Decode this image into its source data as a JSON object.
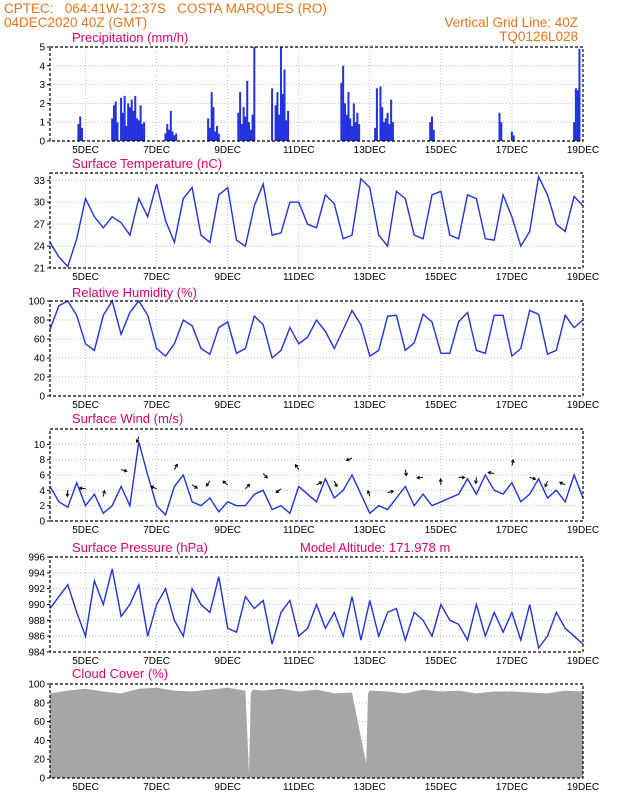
{
  "header": {
    "line1_left": "CPTEC:   064:41W-12:37S   COSTA MARQUES (RO)",
    "line2_left": "04DEC2020 40Z (GMT)",
    "line2_right": "Vertical Grid Line: 40Z",
    "line3_right": "TQ0126L028"
  },
  "colors": {
    "header": "#e8741c",
    "panel_title": "#e0006e",
    "series": "#2233dd",
    "cloud": "#a6a6a6"
  },
  "x_axis": {
    "labels": [
      "5DEC",
      "7DEC",
      "9DEC",
      "11DEC",
      "13DEC",
      "15DEC",
      "17DEC",
      "19DEC"
    ],
    "day_start": 4.0,
    "day_end": 19.0
  },
  "chart_data": [
    {
      "type": "bar",
      "title": "Precipitation (mm/h)",
      "ylim": [
        0,
        5
      ],
      "yticks": [
        0,
        1,
        2,
        3,
        4,
        5
      ],
      "x": [
        4.8,
        4.85,
        4.9,
        5.75,
        5.8,
        5.85,
        5.9,
        6.0,
        6.05,
        6.1,
        6.15,
        6.2,
        6.25,
        6.3,
        6.35,
        6.4,
        6.45,
        6.5,
        6.55,
        6.6,
        6.65,
        7.25,
        7.3,
        7.35,
        7.4,
        7.45,
        7.5,
        7.55,
        8.45,
        8.5,
        8.55,
        8.6,
        8.65,
        8.7,
        8.75,
        9.3,
        9.35,
        9.4,
        9.45,
        9.5,
        9.55,
        9.6,
        9.65,
        9.7,
        9.75,
        10.25,
        10.35,
        10.4,
        10.45,
        10.5,
        10.55,
        10.6,
        10.65,
        10.7,
        12.2,
        12.25,
        12.3,
        12.35,
        12.4,
        12.45,
        12.5,
        12.55,
        12.6,
        12.65,
        12.7,
        13.15,
        13.2,
        13.3,
        13.35,
        13.4,
        13.45,
        13.5,
        13.55,
        13.6,
        13.65,
        14.7,
        14.75,
        14.8,
        16.65,
        16.7,
        17.0,
        17.05,
        18.75,
        18.8,
        18.85,
        18.9
      ],
      "values": [
        0.9,
        1.3,
        0.7,
        1.2,
        1.9,
        2.1,
        1.0,
        2.3,
        1.5,
        2.4,
        0.8,
        2.0,
        1.8,
        2.2,
        1.6,
        2.4,
        1.2,
        1.1,
        1.9,
        0.9,
        1.0,
        0.4,
        0.9,
        0.6,
        1.6,
        0.5,
        0.3,
        0.4,
        1.2,
        0.7,
        2.6,
        1.8,
        0.5,
        0.8,
        0.4,
        1.5,
        2.6,
        0.9,
        1.8,
        1.3,
        3.2,
        1.0,
        0.6,
        1.4,
        5.0,
        2.8,
        1.9,
        2.6,
        1.4,
        5.0,
        2.5,
        3.8,
        1.1,
        1.6,
        3.1,
        4.0,
        2.0,
        1.4,
        2.6,
        1.2,
        0.8,
        2.0,
        1.0,
        1.5,
        0.9,
        0.7,
        2.8,
        2.9,
        1.8,
        1.0,
        1.2,
        1.5,
        0.9,
        2.2,
        1.0,
        1.0,
        1.3,
        0.6,
        1.5,
        1.0,
        0.5,
        0.3,
        1.0,
        2.8,
        2.7,
        4.9
      ]
    },
    {
      "type": "line",
      "title": "Surface Temperature (nC)",
      "ylim": [
        21,
        34
      ],
      "yticks": [
        21,
        24,
        27,
        30,
        33
      ],
      "x": [
        4.0,
        4.25,
        4.5,
        4.75,
        5.0,
        5.25,
        5.5,
        5.75,
        6.0,
        6.25,
        6.5,
        6.75,
        7.0,
        7.25,
        7.5,
        7.75,
        8.0,
        8.25,
        8.5,
        8.75,
        9.0,
        9.25,
        9.5,
        9.75,
        10.0,
        10.25,
        10.5,
        10.75,
        11.0,
        11.25,
        11.5,
        11.75,
        12.0,
        12.25,
        12.5,
        12.75,
        13.0,
        13.25,
        13.5,
        13.75,
        14.0,
        14.25,
        14.5,
        14.75,
        15.0,
        15.25,
        15.5,
        15.75,
        16.0,
        16.25,
        16.5,
        16.75,
        17.0,
        17.25,
        17.5,
        17.75,
        18.0,
        18.25,
        18.5,
        18.75,
        19.0
      ],
      "values": [
        24.5,
        22.5,
        21.2,
        25.0,
        30.5,
        28.0,
        26.5,
        28.0,
        27.2,
        25.5,
        30.5,
        28.0,
        32.5,
        27.5,
        24.5,
        30.5,
        32.0,
        25.5,
        24.5,
        31.0,
        32.0,
        24.8,
        24.0,
        29.5,
        32.5,
        25.5,
        25.8,
        30.0,
        30.0,
        27.0,
        26.5,
        31.0,
        29.8,
        25.0,
        25.5,
        33.2,
        32.0,
        25.5,
        24.0,
        31.5,
        30.5,
        25.5,
        25.0,
        31.0,
        31.5,
        25.5,
        25.0,
        31.0,
        30.5,
        25.0,
        24.8,
        31.0,
        28.0,
        24.0,
        26.0,
        33.5,
        31.0,
        27.0,
        26.0,
        30.8,
        29.5
      ]
    },
    {
      "type": "line",
      "title": "Relative Humidity (%)",
      "ylim": [
        0,
        100
      ],
      "yticks": [
        0,
        20,
        40,
        60,
        80,
        100
      ],
      "x": [
        4.0,
        4.25,
        4.5,
        4.75,
        5.0,
        5.25,
        5.5,
        5.75,
        6.0,
        6.25,
        6.5,
        6.75,
        7.0,
        7.25,
        7.5,
        7.75,
        8.0,
        8.25,
        8.5,
        8.75,
        9.0,
        9.25,
        9.5,
        9.75,
        10.0,
        10.25,
        10.5,
        10.75,
        11.0,
        11.25,
        11.5,
        11.75,
        12.0,
        12.25,
        12.5,
        12.75,
        13.0,
        13.25,
        13.5,
        13.75,
        14.0,
        14.25,
        14.5,
        14.75,
        15.0,
        15.25,
        15.5,
        15.75,
        16.0,
        16.25,
        16.5,
        16.75,
        17.0,
        17.25,
        17.5,
        17.75,
        18.0,
        18.25,
        18.5,
        18.75,
        19.0
      ],
      "values": [
        70,
        95,
        100,
        85,
        55,
        48,
        85,
        100,
        65,
        88,
        100,
        85,
        50,
        42,
        55,
        80,
        74,
        50,
        44,
        72,
        78,
        45,
        50,
        84,
        75,
        40,
        48,
        72,
        55,
        62,
        80,
        68,
        50,
        70,
        90,
        75,
        42,
        48,
        84,
        85,
        48,
        56,
        86,
        78,
        45,
        45,
        78,
        88,
        48,
        45,
        85,
        85,
        42,
        50,
        90,
        86,
        44,
        48,
        85,
        72,
        80
      ]
    },
    {
      "type": "line",
      "title": "Surface Wind (m/s)",
      "ylim": [
        0,
        12
      ],
      "yticks": [
        0,
        2,
        4,
        6,
        8,
        10
      ],
      "x": [
        4.0,
        4.25,
        4.5,
        4.75,
        5.0,
        5.25,
        5.5,
        5.75,
        6.0,
        6.25,
        6.5,
        6.75,
        7.0,
        7.25,
        7.5,
        7.75,
        8.0,
        8.25,
        8.5,
        8.75,
        9.0,
        9.25,
        9.5,
        9.75,
        10.0,
        10.25,
        10.5,
        10.75,
        11.0,
        11.25,
        11.5,
        11.75,
        12.0,
        12.25,
        12.5,
        12.75,
        13.0,
        13.25,
        13.5,
        13.75,
        14.0,
        14.25,
        14.5,
        14.75,
        15.0,
        15.25,
        15.5,
        15.75,
        16.0,
        16.25,
        16.5,
        16.75,
        17.0,
        17.25,
        17.5,
        17.75,
        18.0,
        18.25,
        18.5,
        18.75,
        19.0
      ],
      "values": [
        4.5,
        2.5,
        1.8,
        5.0,
        2.0,
        3.5,
        1.0,
        2.0,
        4.5,
        2.0,
        10.3,
        6.0,
        2.0,
        0.8,
        4.5,
        6.0,
        2.5,
        2.0,
        3.0,
        1.2,
        2.5,
        2.0,
        2.0,
        3.5,
        4.0,
        1.5,
        2.0,
        1.0,
        4.5,
        3.5,
        2.5,
        5.5,
        3.0,
        4.0,
        6.0,
        3.5,
        1.0,
        2.0,
        1.5,
        3.0,
        4.5,
        2.0,
        3.5,
        2.0,
        2.5,
        3.0,
        3.5,
        5.5,
        3.5,
        6.0,
        4.0,
        3.5,
        5.0,
        2.5,
        3.5,
        5.5,
        3.0,
        4.0,
        2.5,
        6.0,
        3.0
      ]
    },
    {
      "type": "line",
      "title": "Surface Pressure (hPa)",
      "annotation": "Model Altitude: 171.978 m",
      "ylim": [
        984,
        996
      ],
      "yticks": [
        984,
        986,
        988,
        990,
        992,
        994,
        996
      ],
      "x": [
        4.0,
        4.25,
        4.5,
        4.75,
        5.0,
        5.25,
        5.5,
        5.75,
        6.0,
        6.25,
        6.5,
        6.75,
        7.0,
        7.25,
        7.5,
        7.75,
        8.0,
        8.25,
        8.5,
        8.75,
        9.0,
        9.25,
        9.5,
        9.75,
        10.0,
        10.25,
        10.5,
        10.75,
        11.0,
        11.25,
        11.5,
        11.75,
        12.0,
        12.25,
        12.5,
        12.75,
        13.0,
        13.25,
        13.5,
        13.75,
        14.0,
        14.25,
        14.5,
        14.75,
        15.0,
        15.25,
        15.5,
        15.75,
        16.0,
        16.25,
        16.5,
        16.75,
        17.0,
        17.25,
        17.5,
        17.75,
        18.0,
        18.25,
        18.5,
        18.75,
        19.0
      ],
      "values": [
        989.5,
        991.0,
        992.5,
        989.0,
        986.0,
        993.0,
        990.0,
        994.5,
        988.5,
        990.0,
        992.5,
        986.0,
        990.0,
        992.0,
        988.0,
        986.0,
        992.0,
        990.0,
        989.0,
        993.5,
        987.0,
        986.5,
        991.0,
        989.5,
        990.5,
        985.0,
        989.0,
        990.5,
        986.0,
        987.0,
        990.0,
        987.0,
        989.0,
        986.0,
        991.0,
        985.5,
        990.5,
        986.0,
        989.0,
        989.5,
        985.5,
        989.0,
        988.0,
        986.0,
        990.0,
        988.0,
        987.5,
        985.5,
        990.0,
        986.0,
        989.0,
        986.5,
        989.0,
        985.5,
        990.0,
        984.5,
        986.0,
        989.0,
        987.0,
        986.0,
        985.0
      ]
    },
    {
      "type": "area",
      "title": "Cloud Cover (%)",
      "ylim": [
        0,
        100
      ],
      "yticks": [
        0,
        20,
        40,
        60,
        80,
        100
      ],
      "x": [
        4.0,
        4.5,
        5.0,
        5.5,
        6.0,
        6.5,
        7.0,
        7.5,
        8.0,
        8.5,
        9.0,
        9.5,
        9.6,
        9.65,
        9.7,
        10.0,
        10.5,
        11.0,
        11.5,
        12.0,
        12.5,
        12.9,
        12.95,
        13.0,
        13.5,
        14.0,
        14.5,
        15.0,
        15.5,
        16.0,
        16.5,
        17.0,
        17.5,
        18.0,
        18.5,
        19.0
      ],
      "values": [
        90,
        93,
        95,
        92,
        90,
        95,
        96,
        93,
        92,
        94,
        96,
        93,
        5,
        90,
        94,
        93,
        95,
        92,
        94,
        90,
        91,
        15,
        90,
        93,
        92,
        90,
        94,
        92,
        93,
        90,
        92,
        92,
        91,
        90,
        93,
        92
      ]
    }
  ]
}
